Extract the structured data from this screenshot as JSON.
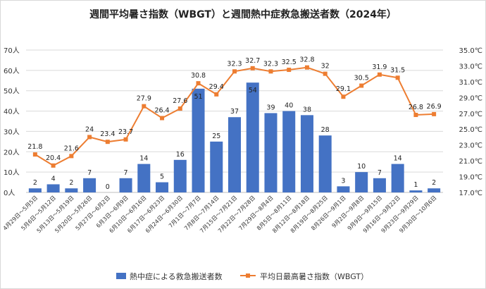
{
  "chart_data": {
    "type": "bar+line",
    "title": "週間平均暑さ指数（WBGT）と週間熱中症救急搬送者数（2024年）",
    "categories": [
      "4月29日〜5月5日",
      "5月6日〜5月12日",
      "5月13日〜5月19日",
      "5月20日〜5月26日",
      "5月27日〜6月2日",
      "6月3日〜6月9日",
      "6月10日〜6月16日",
      "6月17日〜6月23日",
      "6月24日〜6月30日",
      "7月1日〜7月7日",
      "7月8日〜7月14日",
      "7月15日〜7月21日",
      "7月22日〜7月28日",
      "7月29日〜8月4日",
      "8月5日〜8月11日",
      "8月12日〜8月18日",
      "8月19日〜8月25日",
      "8月26日〜9月1日",
      "9月2日〜9月8日",
      "9月9日〜9月15日",
      "9月16日〜9月22日",
      "9月23日〜9月29日",
      "9月30日〜10月6日"
    ],
    "series": [
      {
        "name": "熱中症による救急搬送者数",
        "type": "bar",
        "axis": "left",
        "color": "#4472C4",
        "values": [
          2,
          4,
          2,
          7,
          0,
          7,
          14,
          5,
          16,
          51,
          25,
          37,
          54,
          39,
          40,
          38,
          28,
          3,
          10,
          7,
          14,
          1,
          2
        ],
        "labels": [
          "2",
          "4",
          "2",
          "7",
          "0",
          "7",
          "14",
          "5",
          "16",
          "51",
          "25",
          "37",
          "54",
          "39",
          "40",
          "38",
          "28",
          "3",
          "10",
          "7",
          "14",
          "1",
          "2"
        ]
      },
      {
        "name": "平均日最高暑さ指数（WBGT）",
        "type": "line",
        "axis": "right",
        "color": "#ED7D31",
        "values": [
          21.8,
          20.4,
          21.6,
          24,
          23.4,
          23.7,
          27.9,
          26.4,
          27.6,
          30.8,
          29.4,
          32.3,
          32.7,
          32.3,
          32.5,
          32.8,
          32,
          29.1,
          30.5,
          31.9,
          31.5,
          26.8,
          26.9
        ],
        "labels": [
          "21.8",
          "20.4",
          "21.6",
          "24",
          "23.4",
          "23.7",
          "27.9",
          "26.4",
          "27.6",
          "30.8",
          "29.4",
          "32.3",
          "32.7",
          "32.3",
          "32.5",
          "32.8",
          "32",
          "29.1",
          "30.5",
          "31.9",
          "31.5",
          "26.8",
          "26.9"
        ]
      }
    ],
    "left_axis": {
      "min": 0,
      "max": 70,
      "ticks": [
        0,
        10,
        20,
        30,
        40,
        50,
        60,
        70
      ],
      "tick_labels": [
        "0人",
        "10人",
        "20人",
        "30人",
        "40人",
        "50人",
        "60人",
        "70人"
      ]
    },
    "right_axis": {
      "min": 17,
      "max": 35,
      "ticks": [
        17,
        19,
        21,
        23,
        25,
        27,
        29,
        31,
        33,
        35
      ],
      "tick_labels": [
        "17.0℃",
        "19.0℃",
        "21.0℃",
        "23.0℃",
        "25.0℃",
        "27.0℃",
        "29.0℃",
        "31.0℃",
        "33.0℃",
        "35.0℃"
      ]
    },
    "grid": true,
    "legend_position": "bottom"
  }
}
